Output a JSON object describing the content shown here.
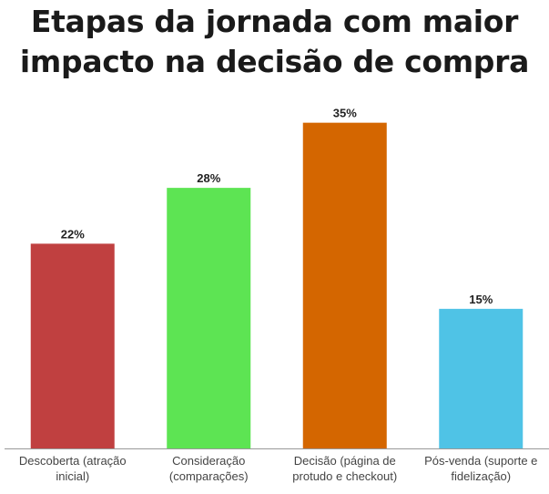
{
  "title": "Etapas da jornada com maior\nimpacto na decisão de compra",
  "chart_data": {
    "type": "bar",
    "title": "Etapas da jornada com maior\nimpacto na decisão de compra",
    "categories": [
      [
        "Descoberta (atração",
        "inicial)"
      ],
      [
        "Consideração",
        "(comparações)"
      ],
      [
        "Decisão (página de",
        "protudo e checkout)"
      ],
      [
        "Pós-venda (suporte e",
        "fidelização)"
      ]
    ],
    "values": [
      22,
      28,
      35,
      15
    ],
    "value_labels": [
      "22%",
      "28%",
      "35%",
      "15%"
    ],
    "unit": "%",
    "colors": [
      "#c04040",
      "#5de453",
      "#d46600",
      "#4fc3e6"
    ],
    "ylim": [
      0,
      40
    ],
    "grid": false,
    "legend": "none"
  }
}
